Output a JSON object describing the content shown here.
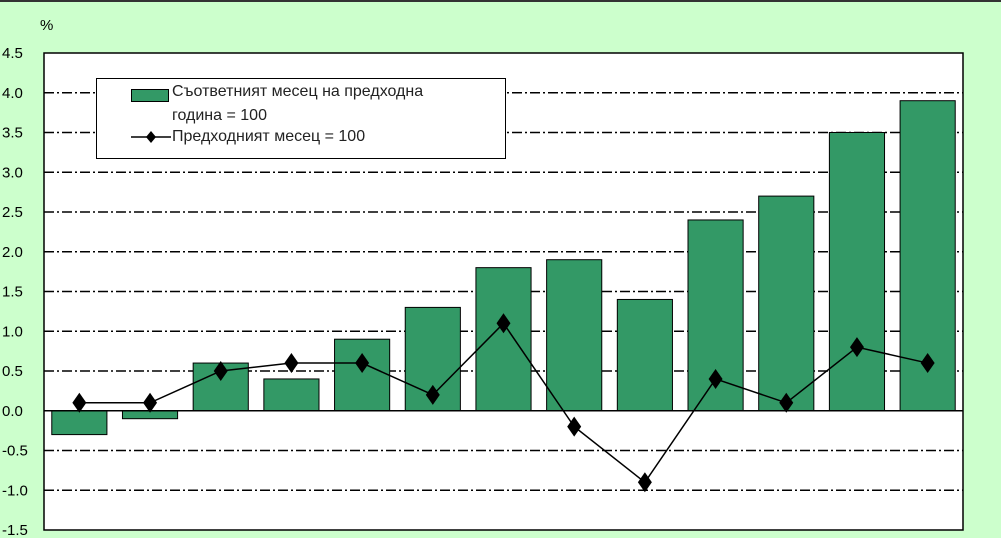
{
  "chart_data": {
    "type": "bar",
    "title": "",
    "ylabel": "%",
    "xlabel": "",
    "ylim": [
      -1.5,
      4.5
    ],
    "yticks": [
      "4.5",
      "4.0",
      "3.5",
      "3.0",
      "2.5",
      "2.0",
      "1.5",
      "1.0",
      "0.5",
      "0.0",
      "-0.5",
      "-1.0",
      "-1.5"
    ],
    "grid": true,
    "legend_placement": "top-left",
    "colors": {
      "bar": "#339966",
      "line": "#000000",
      "background": "#ccffcc",
      "plot": "#ffffff"
    },
    "series": [
      {
        "name": "Съответният месец на предходната година = 100",
        "legend_line1": "Съответният месец на предходна",
        "legend_line2": "година = 100",
        "kind": "bar",
        "values": [
          -0.3,
          -0.1,
          0.6,
          0.4,
          0.9,
          1.3,
          1.8,
          1.9,
          1.4,
          2.4,
          2.7,
          3.5,
          3.9
        ]
      },
      {
        "name": "Предходният месец = 100",
        "kind": "line",
        "marker": "diamond",
        "values": [
          0.1,
          0.1,
          0.5,
          0.6,
          0.6,
          0.2,
          1.1,
          -0.2,
          -0.9,
          0.4,
          0.1,
          0.8,
          0.6
        ]
      }
    ]
  }
}
